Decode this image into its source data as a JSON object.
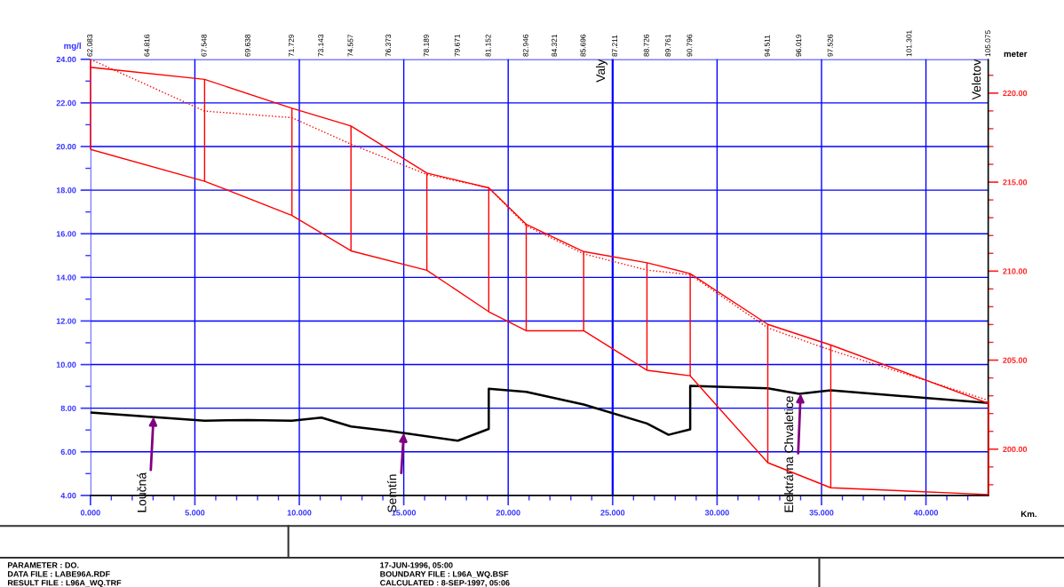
{
  "chart_data": {
    "type": "line",
    "xlabel": "Km.",
    "ylabel": "mg/l",
    "y2label": "meter",
    "xlim": [
      0,
      42.992
    ],
    "ylim": [
      4,
      24
    ],
    "y2lim": [
      197.4,
      221.9
    ],
    "x2lim": [
      62.083,
      105.075
    ],
    "xticks": [
      {
        "value": 0,
        "label": "0.000"
      },
      {
        "value": 1,
        "label": null
      },
      {
        "value": 2,
        "label": null
      },
      {
        "value": 3,
        "label": null
      },
      {
        "value": 4,
        "label": null
      },
      {
        "value": 5,
        "label": "5.000"
      },
      {
        "value": 6,
        "label": null
      },
      {
        "value": 7,
        "label": null
      },
      {
        "value": 8,
        "label": null
      },
      {
        "value": 9,
        "label": null
      },
      {
        "value": 10,
        "label": "10.000"
      },
      {
        "value": 11,
        "label": null
      },
      {
        "value": 12,
        "label": null
      },
      {
        "value": 13,
        "label": null
      },
      {
        "value": 14,
        "label": null
      },
      {
        "value": 15,
        "label": "15.000"
      },
      {
        "value": 16,
        "label": null
      },
      {
        "value": 17,
        "label": null
      },
      {
        "value": 18,
        "label": null
      },
      {
        "value": 19,
        "label": null
      },
      {
        "value": 20,
        "label": "20.000"
      },
      {
        "value": 21,
        "label": null
      },
      {
        "value": 22,
        "label": null
      },
      {
        "value": 23,
        "label": null
      },
      {
        "value": 24,
        "label": null
      },
      {
        "value": 25,
        "label": "25.000"
      },
      {
        "value": 26,
        "label": null
      },
      {
        "value": 27,
        "label": null
      },
      {
        "value": 28,
        "label": null
      },
      {
        "value": 29,
        "label": null
      },
      {
        "value": 30,
        "label": "30.000"
      },
      {
        "value": 31,
        "label": null
      },
      {
        "value": 32,
        "label": null
      },
      {
        "value": 33,
        "label": null
      },
      {
        "value": 34,
        "label": null
      },
      {
        "value": 35,
        "label": "35.000"
      },
      {
        "value": 36,
        "label": null
      },
      {
        "value": 37,
        "label": null
      },
      {
        "value": 38,
        "label": null
      },
      {
        "value": 39,
        "label": null
      },
      {
        "value": 40,
        "label": "40.000"
      },
      {
        "value": 41,
        "label": null
      },
      {
        "value": 42,
        "label": null
      }
    ],
    "yticks": [
      {
        "value": 4,
        "label": "4.00"
      },
      {
        "value": 5,
        "label": null
      },
      {
        "value": 6,
        "label": "6.00"
      },
      {
        "value": 7,
        "label": null
      },
      {
        "value": 8,
        "label": "8.00"
      },
      {
        "value": 9,
        "label": null
      },
      {
        "value": 10,
        "label": "10.00"
      },
      {
        "value": 11,
        "label": null
      },
      {
        "value": 12,
        "label": "12.00"
      },
      {
        "value": 13,
        "label": null
      },
      {
        "value": 14,
        "label": "14.00"
      },
      {
        "value": 15,
        "label": null
      },
      {
        "value": 16,
        "label": "16.00"
      },
      {
        "value": 17,
        "label": null
      },
      {
        "value": 18,
        "label": "18.00"
      },
      {
        "value": 19,
        "label": null
      },
      {
        "value": 20,
        "label": "20.00"
      },
      {
        "value": 21,
        "label": null
      },
      {
        "value": 22,
        "label": "22.00"
      },
      {
        "value": 23,
        "label": null
      },
      {
        "value": 24,
        "label": "24.00"
      }
    ],
    "y2ticks": [
      {
        "value": 198,
        "label": null
      },
      {
        "value": 199,
        "label": null
      },
      {
        "value": 200,
        "label": "200.00"
      },
      {
        "value": 201,
        "label": null
      },
      {
        "value": 202,
        "label": null
      },
      {
        "value": 203,
        "label": null
      },
      {
        "value": 204,
        "label": null
      },
      {
        "value": 205,
        "label": "205.00"
      },
      {
        "value": 206,
        "label": null
      },
      {
        "value": 207,
        "label": null
      },
      {
        "value": 208,
        "label": null
      },
      {
        "value": 209,
        "label": null
      },
      {
        "value": 210,
        "label": "210.00"
      },
      {
        "value": 211,
        "label": null
      },
      {
        "value": 212,
        "label": null
      },
      {
        "value": 213,
        "label": null
      },
      {
        "value": 214,
        "label": null
      },
      {
        "value": 215,
        "label": "215.00"
      },
      {
        "value": 216,
        "label": null
      },
      {
        "value": 217,
        "label": null
      },
      {
        "value": 218,
        "label": null
      },
      {
        "value": 219,
        "label": null
      },
      {
        "value": 220,
        "label": "220.00"
      },
      {
        "value": 221,
        "label": null
      }
    ],
    "x2ticks": [
      {
        "value": 62.083,
        "label": "62.083"
      },
      {
        "value": 64.816,
        "label": "64.816"
      },
      {
        "value": 67.548,
        "label": "67.548"
      },
      {
        "value": 69.638,
        "label": "69.638"
      },
      {
        "value": 71.729,
        "label": "71.729"
      },
      {
        "value": 73.143,
        "label": "73.143"
      },
      {
        "value": 74.557,
        "label": "74.557"
      },
      {
        "value": 76.373,
        "label": "76.373"
      },
      {
        "value": 78.189,
        "label": "78.189"
      },
      {
        "value": 79.671,
        "label": "79.671"
      },
      {
        "value": 81.152,
        "label": "81.152"
      },
      {
        "value": 82.946,
        "label": "82.946"
      },
      {
        "value": 84.321,
        "label": "84.321"
      },
      {
        "value": 85.696,
        "label": "85.696"
      },
      {
        "value": 87.211,
        "label": "87.211"
      },
      {
        "value": 88.726,
        "label": "88.726"
      },
      {
        "value": 89.761,
        "label": "89.761"
      },
      {
        "value": 90.796,
        "label": "90.796"
      },
      {
        "value": 94.511,
        "label": "94.511"
      },
      {
        "value": 96.019,
        "label": "96.019"
      },
      {
        "value": 97.526,
        "label": "97.526"
      },
      {
        "value": 101.301,
        "label": "101.301"
      },
      {
        "value": 105.075,
        "label": "105.075"
      }
    ],
    "grid": true,
    "series": [
      {
        "color": "#000000",
        "x": [
          0,
          5.465,
          7.555,
          9.646,
          11.06,
          12.474,
          14.29,
          17.588,
          19.069,
          19.069,
          20.863,
          23.613,
          26.643,
          27.678,
          28.713,
          28.713,
          32.428,
          33.936,
          35.443,
          42.992
        ],
        "values": [
          7.8,
          7.43,
          7.46,
          7.43,
          7.57,
          7.16,
          6.96,
          6.51,
          7.05,
          8.89,
          8.75,
          8.17,
          7.3,
          6.78,
          7.03,
          9.02,
          8.91,
          8.66,
          8.82,
          8.24
        ]
      },
      {
        "axis": "y2",
        "color": "#ff0000",
        "x": [
          0,
          5.465,
          9.646,
          12.474,
          16.106,
          19.069,
          20.863,
          23.613,
          26.643,
          28.713,
          32.428,
          35.443,
          42.992
        ],
        "values": [
          221.45,
          220.77,
          219.15,
          218.15,
          215.51,
          214.68,
          212.63,
          211.1,
          210.47,
          209.86,
          207.01,
          205.85,
          202.57
        ]
      },
      {
        "axis": "y2",
        "color": "#ff0000",
        "line_style": "dotted",
        "x": [
          0,
          5.465,
          9.646,
          12.474,
          16.106,
          19.069,
          20.863,
          23.613,
          26.643,
          28.713,
          32.428,
          35.443,
          42.992
        ],
        "values": [
          221.9,
          218.99,
          218.62,
          217.13,
          215.43,
          214.68,
          212.55,
          210.97,
          210.06,
          209.8,
          206.81,
          205.56,
          202.74
        ]
      },
      {
        "axis": "y2",
        "color": "#ff0000",
        "x": [
          0,
          5.465,
          9.646,
          12.474,
          16.106,
          19.069,
          20.863,
          23.613,
          26.643,
          28.713,
          32.428,
          35.443,
          42.992
        ],
        "values": [
          216.84,
          215.05,
          213.13,
          211.14,
          210.05,
          207.72,
          206.65,
          206.65,
          204.43,
          204.12,
          199.24,
          197.83,
          197.45
        ]
      },
      {
        "type": "bar",
        "axis": "y2",
        "color": "#ff0000",
        "x": [
          0,
          5.465,
          9.646,
          12.474,
          16.106,
          19.069,
          20.863,
          23.613,
          26.643,
          28.713,
          32.428,
          35.443,
          42.992
        ],
        "base": [
          216.84,
          215.05,
          213.13,
          211.14,
          210.05,
          207.72,
          206.65,
          206.65,
          204.43,
          204.12,
          199.24,
          197.83,
          197.45
        ],
        "values": [
          5.06,
          5.72,
          6.02,
          7.01,
          5.46,
          6.96,
          5.98,
          4.45,
          6.04,
          5.74,
          7.77,
          8.02,
          5.29
        ]
      }
    ],
    "ref_lines": [
      {
        "axis": "x",
        "value": 25,
        "label": "Valy",
        "color": "#0000ff"
      },
      {
        "axis": "x",
        "value": 42.992,
        "label": "Veletov",
        "color": "#000000"
      }
    ],
    "annotations": [
      {
        "text": "Loučná",
        "x": 3.02,
        "y": 7.6
      },
      {
        "text": "Semtín",
        "x": 15.0,
        "y": 6.86
      },
      {
        "text": "Elektrárna Chvaletice",
        "x": 34.0,
        "y": 8.67
      },
      "PARAMETER : DO.",
      "DATA FILE : LABE96A.RDF",
      "RESULT FILE : L96A_WQ.TRF",
      "17-JUN-1996, 05:00",
      "BOUNDARY FILE : L96A_WQ.BSF",
      "CALCULATED : 8-SEP-1997, 05:06"
    ]
  }
}
